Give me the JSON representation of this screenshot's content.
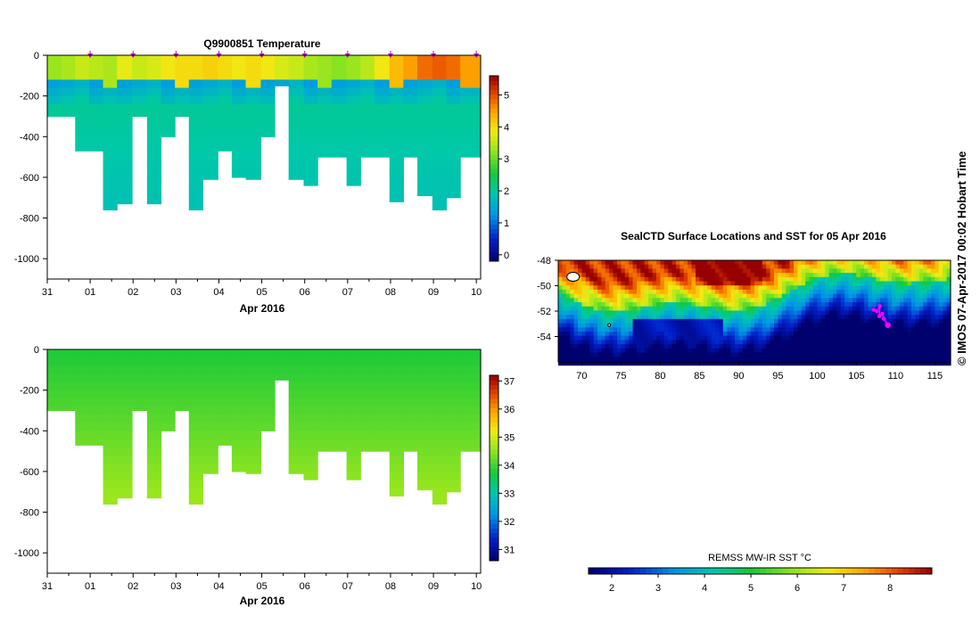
{
  "chart_data": [
    {
      "type": "heatmap",
      "title": "Q9900851  Temperature",
      "xlabel": "Apr 2016",
      "x_tick_labels": [
        "31",
        "01",
        "02",
        "03",
        "04",
        "05",
        "06",
        "07",
        "08",
        "09",
        "10"
      ],
      "y_tick_labels": [
        "0",
        "-200",
        "-400",
        "-600",
        "-800",
        "-1000"
      ],
      "y_ticks": [
        0,
        -200,
        -400,
        -600,
        -800,
        -1000
      ],
      "ylim": [
        -1100,
        0
      ],
      "xlim": [
        0,
        10.1
      ],
      "colorbar_ticks": [
        0,
        1,
        2,
        3,
        4,
        5
      ],
      "colorbar_range": [
        -0.2,
        5.6
      ],
      "profile_days": [
        0.15,
        0.5,
        0.8,
        1.15,
        1.45,
        1.8,
        2.15,
        2.5,
        2.8,
        3.15,
        3.45,
        3.8,
        4.15,
        4.45,
        4.8,
        5.15,
        5.45,
        5.8,
        6.15,
        6.45,
        6.8,
        7.15,
        7.45,
        7.8,
        8.15,
        8.45,
        8.8,
        9.15,
        9.45,
        9.8
      ],
      "profile_max_depths": [
        -300,
        -300,
        -470,
        -470,
        -760,
        -730,
        -300,
        -730,
        -400,
        -300,
        -760,
        -610,
        -470,
        -600,
        -610,
        -400,
        -150,
        -610,
        -640,
        -500,
        -500,
        -640,
        -500,
        -500,
        -720,
        -500,
        -690,
        -760,
        -700,
        -500
      ],
      "surface_temps": [
        3.3,
        3.4,
        3.6,
        3.5,
        3.4,
        3.8,
        3.6,
        3.7,
        3.9,
        4.0,
        4.0,
        4.1,
        4.0,
        3.9,
        4.0,
        3.9,
        3.7,
        3.6,
        3.4,
        3.3,
        3.2,
        3.3,
        3.5,
        3.9,
        4.3,
        4.5,
        4.8,
        4.9,
        4.8,
        4.5
      ],
      "markers": [
        1,
        2,
        3,
        4,
        5,
        6,
        7,
        8,
        9,
        10
      ]
    },
    {
      "type": "heatmap",
      "title": "",
      "xlabel": "Apr 2016",
      "x_tick_labels": [
        "31",
        "01",
        "02",
        "03",
        "04",
        "05",
        "06",
        "07",
        "08",
        "09",
        "10"
      ],
      "y_tick_labels": [
        "0",
        "-200",
        "-400",
        "-600",
        "-800",
        "-1000"
      ],
      "y_ticks": [
        0,
        -200,
        -400,
        -600,
        -800,
        -1000
      ],
      "ylim": [
        -1100,
        0
      ],
      "colorbar_ticks": [
        31,
        32,
        33,
        34,
        35,
        36,
        37
      ],
      "colorbar_range": [
        30.6,
        37.2
      ]
    },
    {
      "type": "heatmap",
      "title": "SealCTD Surface Locations and SST for 05 Apr 2016",
      "x_tick_labels": [
        "70",
        "75",
        "80",
        "85",
        "90",
        "95",
        "100",
        "105",
        "110",
        "115"
      ],
      "x_ticks": [
        70,
        75,
        80,
        85,
        90,
        95,
        100,
        105,
        110,
        115
      ],
      "y_tick_labels": [
        "-48",
        "-50",
        "-52",
        "-54"
      ],
      "y_ticks": [
        -48,
        -50,
        -52,
        -54
      ],
      "xlim": [
        67,
        117
      ],
      "ylim": [
        -56,
        -48
      ],
      "colorbar_label": "REMSS MW-IR SST °C",
      "colorbar_ticks": [
        2,
        3,
        4,
        5,
        6,
        7,
        8
      ],
      "colorbar_range": [
        1.5,
        8.9
      ],
      "track": [
        [
          107.2,
          -51.9
        ],
        [
          107.6,
          -52.0
        ],
        [
          108.0,
          -51.6
        ],
        [
          107.9,
          -52.4
        ],
        [
          108.3,
          -52.2
        ],
        [
          108.5,
          -52.6
        ],
        [
          109.0,
          -53.1
        ]
      ]
    }
  ],
  "side_label": "© IMOS 07-Apr-2017 00:02 Hobart Time",
  "colors": {
    "marker": "#c000c0",
    "track": "#ff00ff"
  }
}
